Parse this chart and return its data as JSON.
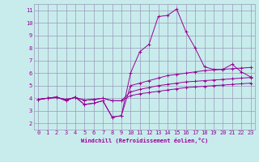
{
  "title": "",
  "xlabel": "Windchill (Refroidissement éolien,°C)",
  "ylabel": "",
  "bg_color": "#c8ecec",
  "grid_color": "#9999bb",
  "line_color": "#990099",
  "xlim": [
    -0.5,
    23.5
  ],
  "ylim": [
    1.5,
    11.5
  ],
  "xticks": [
    0,
    1,
    2,
    3,
    4,
    5,
    6,
    7,
    8,
    9,
    10,
    11,
    12,
    13,
    14,
    15,
    16,
    17,
    18,
    19,
    20,
    21,
    22,
    23
  ],
  "yticks": [
    2,
    3,
    4,
    5,
    6,
    7,
    8,
    9,
    10,
    11
  ],
  "line1": [
    3.9,
    4.0,
    4.1,
    3.8,
    4.1,
    3.5,
    3.6,
    3.8,
    2.5,
    2.6,
    6.0,
    7.7,
    8.3,
    10.5,
    10.6,
    11.1,
    9.3,
    8.0,
    6.5,
    6.3,
    6.3,
    6.7,
    6.1,
    5.7
  ],
  "line2": [
    3.9,
    4.0,
    4.1,
    3.8,
    4.1,
    3.5,
    3.6,
    3.8,
    2.5,
    2.6,
    5.0,
    5.2,
    5.4,
    5.6,
    5.8,
    5.9,
    6.0,
    6.1,
    6.2,
    6.25,
    6.3,
    6.35,
    6.4,
    6.45
  ],
  "line3": [
    3.9,
    4.0,
    4.05,
    3.9,
    4.05,
    3.85,
    3.9,
    4.0,
    3.8,
    3.8,
    4.5,
    4.7,
    4.85,
    5.0,
    5.1,
    5.2,
    5.3,
    5.35,
    5.4,
    5.45,
    5.5,
    5.55,
    5.6,
    5.65
  ],
  "line4": [
    3.9,
    4.0,
    4.05,
    3.9,
    4.05,
    3.85,
    3.9,
    4.0,
    3.8,
    3.8,
    4.2,
    4.35,
    4.45,
    4.55,
    4.65,
    4.75,
    4.85,
    4.9,
    4.95,
    5.0,
    5.05,
    5.1,
    5.15,
    5.2
  ],
  "tick_fontsize": 5,
  "xlabel_fontsize": 5,
  "marker_size": 2.5,
  "line_width": 0.7
}
